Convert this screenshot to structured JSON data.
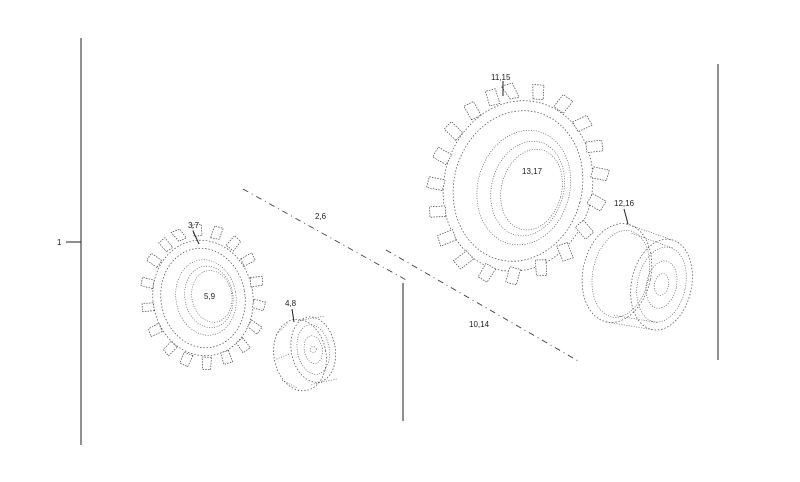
{
  "diagram": {
    "callouts": {
      "assembly": "1",
      "front_tire_top": "3.7",
      "front_tire_center": "5,9",
      "front_rim": "4,8",
      "divider": "2,6",
      "rear_tire_top": "11,15",
      "rear_tire_center": "13,17",
      "rear_rim": "12,16",
      "rear_divider": "10,14"
    }
  }
}
